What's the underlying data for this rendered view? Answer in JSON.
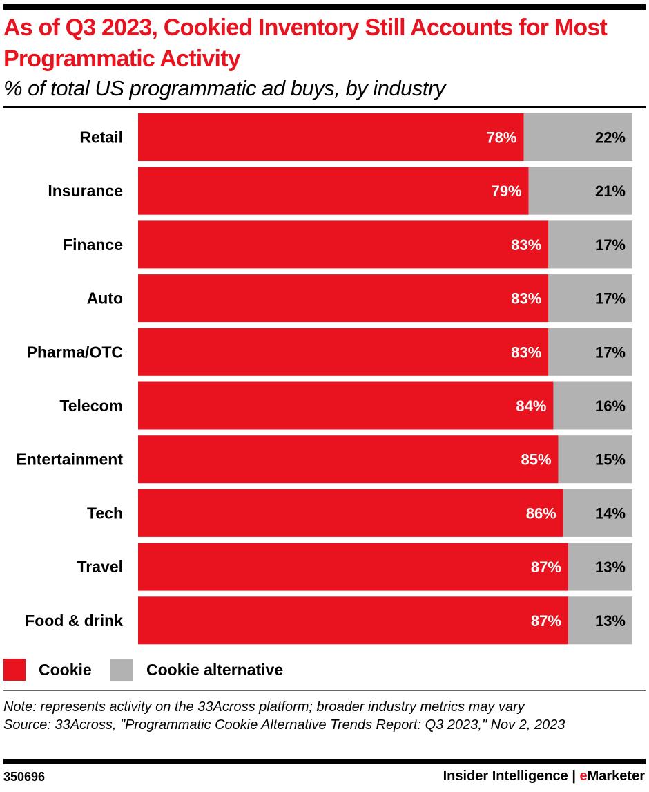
{
  "title": "As of Q3 2023, Cookied Inventory Still Accounts for Most Programmatic Activity",
  "subtitle": "% of total US programmatic ad buys, by industry",
  "chart_data": {
    "type": "bar",
    "orientation": "horizontal",
    "stacked": true,
    "title": "As of Q3 2023, Cookied Inventory Still Accounts for Most Programmatic Activity",
    "subtitle": "% of total US programmatic ad buys, by industry",
    "categories": [
      "Retail",
      "Insurance",
      "Finance",
      "Auto",
      "Pharma/OTC",
      "Telecom",
      "Entertainment",
      "Tech",
      "Travel",
      "Food & drink"
    ],
    "series": [
      {
        "name": "Cookie",
        "color": "#e8131e",
        "values": [
          78,
          79,
          83,
          83,
          83,
          84,
          85,
          86,
          87,
          87
        ]
      },
      {
        "name": "Cookie alternative",
        "color": "#b2b2b2",
        "values": [
          22,
          21,
          17,
          17,
          17,
          16,
          15,
          14,
          13,
          13
        ]
      }
    ],
    "xlim": [
      0,
      100
    ],
    "unit": "%",
    "grid": false,
    "legend": "bottom-left"
  },
  "legend": {
    "items": [
      {
        "label": "Cookie",
        "color": "#e8131e"
      },
      {
        "label": "Cookie alternative",
        "color": "#b2b2b2"
      }
    ]
  },
  "note": "Note: represents activity on the 33Across platform; broader industry metrics may vary",
  "source": "Source: 33Across, \"Programmatic Cookie Alternative Trends Report: Q3 2023,\" Nov 2, 2023",
  "footer": {
    "id": "350696",
    "brand_prefix": "Insider Intelligence | ",
    "brand_e": "e",
    "brand_rest": "Marketer"
  }
}
